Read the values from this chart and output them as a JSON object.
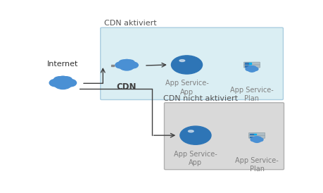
{
  "bg_color": "#ffffff",
  "box1_label": "CDN aktiviert",
  "box2_label": "CDN nicht aktiviert",
  "box1_color": "#daeef3",
  "box1_edge": "#aacde0",
  "box2_color": "#d9d9d9",
  "box2_edge": "#b0b0b0",
  "internet_label": "Internet",
  "cdn_label": "CDN",
  "app_service_app_label": "App Service-\nApp",
  "app_service_plan_label": "App Service-\nPlan",
  "label_color": "#7f7f7f",
  "cdn_label_color": "#404040",
  "arrow_color": "#404040",
  "internet_cloud_color": "#4a90d4",
  "cdn_cloud_color": "#4a90d4",
  "globe_color": "#2e75b6",
  "globe_band_color": "#1a5fa0",
  "server_color": "#8096af",
  "server_stripe_color": "#2e75b6",
  "server_cloud_color": "#4a90d4"
}
